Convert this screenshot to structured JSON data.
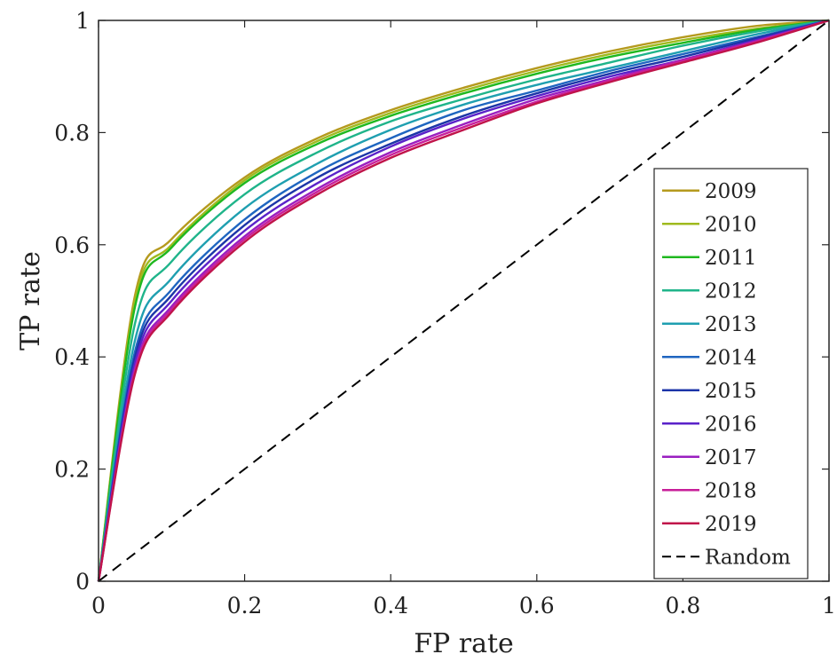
{
  "chart_data": {
    "type": "line",
    "xlabel": "FP rate",
    "ylabel": "TP rate",
    "xlim": [
      0,
      1
    ],
    "ylim": [
      0,
      1
    ],
    "xticks": [
      0,
      0.2,
      0.4,
      0.6,
      0.8,
      1
    ],
    "yticks": [
      0,
      0.2,
      0.4,
      0.6,
      0.8,
      1
    ],
    "xtick_labels": [
      "0",
      "0.2",
      "0.4",
      "0.6",
      "0.8",
      "1"
    ],
    "ytick_labels": [
      "0",
      "0.2",
      "0.4",
      "0.6",
      "0.8",
      "1"
    ],
    "grid": false,
    "legend_position": "right",
    "x": [
      0,
      0.05,
      0.1,
      0.2,
      0.3,
      0.4,
      0.5,
      0.6,
      0.7,
      0.8,
      0.9,
      1.0
    ],
    "series": [
      {
        "name": "2009",
        "color": "#b59a1e",
        "values": [
          0,
          0.51,
          0.61,
          0.72,
          0.79,
          0.84,
          0.88,
          0.915,
          0.945,
          0.97,
          0.99,
          1
        ]
      },
      {
        "name": "2010",
        "color": "#9fba1e",
        "values": [
          0,
          0.5,
          0.6,
          0.715,
          0.785,
          0.835,
          0.875,
          0.91,
          0.94,
          0.965,
          0.985,
          1
        ]
      },
      {
        "name": "2011",
        "color": "#1fb81f",
        "values": [
          0,
          0.49,
          0.595,
          0.71,
          0.78,
          0.83,
          0.87,
          0.905,
          0.935,
          0.96,
          0.983,
          1
        ]
      },
      {
        "name": "2012",
        "color": "#1fb48a",
        "values": [
          0,
          0.46,
          0.57,
          0.69,
          0.765,
          0.82,
          0.86,
          0.895,
          0.925,
          0.955,
          0.98,
          1
        ]
      },
      {
        "name": "2013",
        "color": "#1f9fb0",
        "values": [
          0,
          0.43,
          0.54,
          0.665,
          0.745,
          0.805,
          0.85,
          0.885,
          0.915,
          0.945,
          0.975,
          1
        ]
      },
      {
        "name": "2014",
        "color": "#1f65c0",
        "values": [
          0,
          0.41,
          0.52,
          0.645,
          0.73,
          0.79,
          0.84,
          0.875,
          0.91,
          0.94,
          0.97,
          1
        ]
      },
      {
        "name": "2015",
        "color": "#1c35a8",
        "values": [
          0,
          0.4,
          0.51,
          0.635,
          0.72,
          0.78,
          0.83,
          0.87,
          0.905,
          0.935,
          0.968,
          1
        ]
      },
      {
        "name": "2016",
        "color": "#5a22c9",
        "values": [
          0,
          0.39,
          0.5,
          0.625,
          0.71,
          0.775,
          0.825,
          0.865,
          0.9,
          0.93,
          0.965,
          1
        ]
      },
      {
        "name": "2017",
        "color": "#9a1fc0",
        "values": [
          0,
          0.38,
          0.49,
          0.615,
          0.7,
          0.765,
          0.815,
          0.86,
          0.895,
          0.93,
          0.963,
          1
        ]
      },
      {
        "name": "2018",
        "color": "#c81f9a",
        "values": [
          0,
          0.375,
          0.485,
          0.61,
          0.695,
          0.76,
          0.81,
          0.855,
          0.893,
          0.928,
          0.962,
          1
        ]
      },
      {
        "name": "2019",
        "color": "#c0144a",
        "values": [
          0,
          0.37,
          0.48,
          0.605,
          0.69,
          0.755,
          0.805,
          0.852,
          0.89,
          0.925,
          0.96,
          1
        ]
      },
      {
        "name": "Random",
        "color": "#000000",
        "dashed": true,
        "values": [
          0,
          0.05,
          0.1,
          0.2,
          0.3,
          0.4,
          0.5,
          0.6,
          0.7,
          0.8,
          0.9,
          1.0
        ]
      }
    ]
  }
}
